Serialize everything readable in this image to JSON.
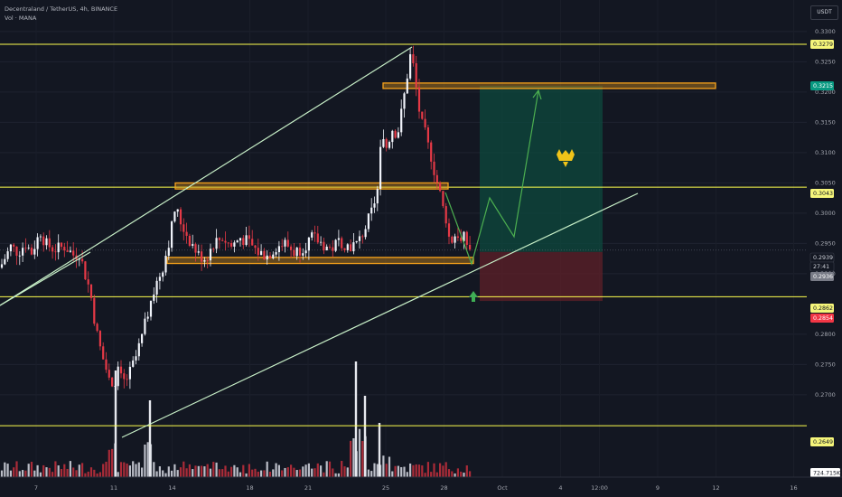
{
  "header": {
    "title": "Decentraland / TetherUS, 4h, BINANCE",
    "indicator": "Vol · MANA"
  },
  "currency": "USDT",
  "chart_data": {
    "type": "candlestick",
    "price_axis": {
      "ticks": [
        "0.3300",
        "0.3250",
        "0.3200",
        "0.3150",
        "0.3100",
        "0.3050",
        "0.3000",
        "0.2950",
        "0.2900",
        "0.2800",
        "0.2750",
        "0.2700"
      ],
      "range": [
        0.262,
        0.333
      ]
    },
    "time_axis": {
      "ticks": [
        "7",
        "11",
        "14",
        "18",
        "21",
        "25",
        "28",
        "Oct",
        "4",
        "12:00",
        "9",
        "12",
        "16",
        "19",
        "23",
        "26"
      ],
      "tick_pos": [
        0,
        4,
        7,
        11,
        14,
        18,
        21,
        24,
        27,
        29,
        32,
        35,
        39,
        42,
        46,
        49
      ]
    },
    "price_tags": [
      {
        "value": "0.3279",
        "bg": "#f5f57a",
        "fg": "#131722"
      },
      {
        "value": "0.3215",
        "bg": "#089981",
        "fg": "#ffffff"
      },
      {
        "value": "0.3043",
        "bg": "#f5f57a",
        "fg": "#131722"
      },
      {
        "value": "0.2939",
        "bg": "#131722",
        "fg": "#d1d4dc"
      },
      {
        "value": "27:41",
        "bg": "#131722",
        "fg": "#d1d4dc"
      },
      {
        "value": "0.2936",
        "bg": "#787b86",
        "fg": "#ffffff"
      },
      {
        "value": "0.2862",
        "bg": "#f5f57a",
        "fg": "#131722"
      },
      {
        "value": "0.2854",
        "bg": "#f23645",
        "fg": "#ffffff"
      },
      {
        "value": "0.2649",
        "bg": "#f5f57a",
        "fg": "#131722"
      }
    ],
    "volume_label": "724.715K",
    "horizontal_levels": [
      0.3279,
      0.3043,
      0.2862,
      0.2649
    ],
    "zones": [
      {
        "name": "target",
        "from": 0.3206,
        "to": 0.3215
      },
      {
        "name": "resistance",
        "from": 0.304,
        "to": 0.305
      },
      {
        "name": "support",
        "from": 0.2917,
        "to": 0.2927
      }
    ],
    "position": {
      "entry": 0.2936,
      "target": 0.321,
      "stop": 0.2855
    },
    "colors": {
      "up": "#f0f3fa",
      "down": "#e53946",
      "level": "#ffff4d",
      "zone": "#f7a21b",
      "channel": "#c8f0c8",
      "projection": "#4caf50",
      "logo": "#f0c419"
    },
    "icons": [
      "up-arrow-icon",
      "crown-logo-icon"
    ]
  }
}
